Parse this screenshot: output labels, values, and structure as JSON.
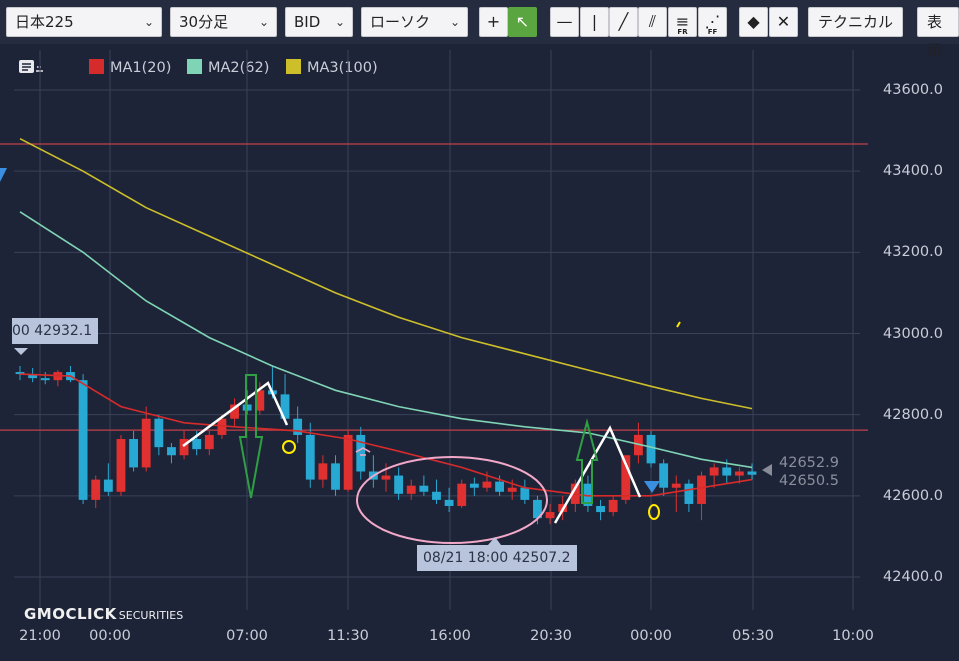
{
  "toolbar": {
    "symbol": "日本225",
    "timeframe": "30分足",
    "price_side": "BID",
    "chart_style": "ローソク",
    "tools": [
      {
        "name": "crosshair-tool",
        "glyph": "+",
        "sub": ""
      },
      {
        "name": "pointer-tool",
        "glyph": "↖",
        "sub": ""
      },
      {
        "name": "horizontal-line-tool",
        "glyph": "—",
        "sub": ""
      },
      {
        "name": "vertical-line-tool",
        "glyph": "|",
        "sub": ""
      },
      {
        "name": "trend-line-tool",
        "glyph": "╱",
        "sub": ""
      },
      {
        "name": "channel-tool",
        "glyph": "⫽",
        "sub": ""
      },
      {
        "name": "fibonacci-retracement-tool",
        "glyph": "≡",
        "sub": "FR"
      },
      {
        "name": "fibonacci-fan-tool",
        "glyph": "⋰",
        "sub": "FF"
      },
      {
        "name": "eraser-tool",
        "glyph": "◆",
        "sub": ""
      },
      {
        "name": "erase-all-tool",
        "glyph": "✕",
        "sub": ""
      }
    ],
    "technical_label": "テクニカル",
    "display_label": "表示"
  },
  "legend": [
    {
      "label": "MA1(20)",
      "color": "#d62b2b"
    },
    {
      "label": "MA2(62)",
      "color": "#7fd4b5"
    },
    {
      "label": "MA3(100)",
      "color": "#cdbf2a"
    }
  ],
  "callouts": {
    "top": "00 42932.1",
    "low": "08/21 18:00 42507.2",
    "last1": "42652.9",
    "last2": "42650.5"
  },
  "brand": {
    "name": "GMOCLICK",
    "suffix": "SECURITIES"
  },
  "chart_data": {
    "type": "candlestick",
    "ylim": [
      42360,
      43700
    ],
    "y_ticks": [
      "43600.0",
      "43400.0",
      "43200.0",
      "43000.0",
      "42800.0",
      "42600.0",
      "42400.0"
    ],
    "x_ticks": [
      "21:00",
      "00:00",
      "07:00",
      "11:30",
      "16:00",
      "20:30",
      "00:00",
      "05:30",
      "10:00"
    ],
    "horizontal_lines": [
      43467,
      42762
    ],
    "up_color": "#e0302f",
    "down_color": "#27a9d3",
    "candles": [
      [
        42905,
        42920,
        42885,
        42900
      ],
      [
        42900,
        42915,
        42880,
        42890
      ],
      [
        42890,
        42905,
        42875,
        42885
      ],
      [
        42885,
        42910,
        42870,
        42905
      ],
      [
        42905,
        42920,
        42880,
        42885
      ],
      [
        42885,
        42900,
        42580,
        42590
      ],
      [
        42590,
        42650,
        42570,
        42640
      ],
      [
        42640,
        42680,
        42600,
        42610
      ],
      [
        42610,
        42750,
        42600,
        42740
      ],
      [
        42740,
        42760,
        42660,
        42670
      ],
      [
        42670,
        42820,
        42660,
        42790
      ],
      [
        42790,
        42800,
        42700,
        42720
      ],
      [
        42720,
        42730,
        42680,
        42700
      ],
      [
        42700,
        42760,
        42690,
        42740
      ],
      [
        42740,
        42760,
        42700,
        42715
      ],
      [
        42715,
        42760,
        42700,
        42750
      ],
      [
        42750,
        42800,
        42740,
        42790
      ],
      [
        42790,
        42840,
        42770,
        42825
      ],
      [
        42825,
        42860,
        42800,
        42810
      ],
      [
        42810,
        42880,
        42800,
        42860
      ],
      [
        42860,
        42920,
        42840,
        42850
      ],
      [
        42850,
        42900,
        42780,
        42790
      ],
      [
        42790,
        42820,
        42730,
        42750
      ],
      [
        42750,
        42780,
        42620,
        42640
      ],
      [
        42640,
        42700,
        42620,
        42680
      ],
      [
        42680,
        42700,
        42600,
        42615
      ],
      [
        42615,
        42760,
        42610,
        42750
      ],
      [
        42750,
        42770,
        42640,
        42660
      ],
      [
        42660,
        42700,
        42620,
        42640
      ],
      [
        42640,
        42680,
        42610,
        42650
      ],
      [
        42650,
        42670,
        42590,
        42605
      ],
      [
        42605,
        42640,
        42590,
        42625
      ],
      [
        42625,
        42650,
        42600,
        42610
      ],
      [
        42610,
        42640,
        42580,
        42590
      ],
      [
        42590,
        42620,
        42560,
        42575
      ],
      [
        42575,
        42640,
        42570,
        42630
      ],
      [
        42630,
        42645,
        42600,
        42620
      ],
      [
        42620,
        42660,
        42610,
        42635
      ],
      [
        42635,
        42650,
        42600,
        42610
      ],
      [
        42610,
        42640,
        42590,
        42620
      ],
      [
        42620,
        42640,
        42580,
        42590
      ],
      [
        42590,
        42600,
        42530,
        42545
      ],
      [
        42545,
        42580,
        42530,
        42560
      ],
      [
        42560,
        42600,
        42540,
        42580
      ],
      [
        42580,
        42640,
        42560,
        42630
      ],
      [
        42630,
        42650,
        42560,
        42575
      ],
      [
        42575,
        42590,
        42540,
        42560
      ],
      [
        42560,
        42600,
        42550,
        42590
      ],
      [
        42590,
        42700,
        42580,
        42700
      ],
      [
        42700,
        42780,
        42680,
        42750
      ],
      [
        42750,
        42760,
        42670,
        42680
      ],
      [
        42680,
        42690,
        42600,
        42620
      ],
      [
        42620,
        42650,
        42560,
        42630
      ],
      [
        42630,
        42640,
        42560,
        42580
      ],
      [
        42580,
        42660,
        42540,
        42650
      ],
      [
        42650,
        42680,
        42620,
        42670
      ],
      [
        42670,
        42690,
        42630,
        42650
      ],
      [
        42650,
        42670,
        42630,
        42660
      ],
      [
        42660,
        42680,
        42640,
        42652
      ]
    ],
    "series": [
      {
        "name": "MA1(20)",
        "color": "#d62b2b",
        "values": [
          [
            0,
            42900
          ],
          [
            4,
            42895
          ],
          [
            8,
            42820
          ],
          [
            13,
            42780
          ],
          [
            17,
            42770
          ],
          [
            22,
            42760
          ],
          [
            26,
            42740
          ],
          [
            30,
            42710
          ],
          [
            35,
            42670
          ],
          [
            40,
            42620
          ],
          [
            45,
            42600
          ],
          [
            50,
            42600
          ],
          [
            54,
            42620
          ],
          [
            58,
            42640
          ]
        ]
      },
      {
        "name": "MA2(62)",
        "color": "#7fd4b5",
        "values": [
          [
            0,
            43300
          ],
          [
            5,
            43200
          ],
          [
            10,
            43080
          ],
          [
            15,
            42990
          ],
          [
            20,
            42920
          ],
          [
            25,
            42860
          ],
          [
            30,
            42820
          ],
          [
            35,
            42790
          ],
          [
            40,
            42770
          ],
          [
            45,
            42755
          ],
          [
            50,
            42720
          ],
          [
            54,
            42690
          ],
          [
            58,
            42670
          ]
        ]
      },
      {
        "name": "MA3(100)",
        "color": "#cdbf2a",
        "values": [
          [
            0,
            43480
          ],
          [
            5,
            43400
          ],
          [
            10,
            43310
          ],
          [
            15,
            43240
          ],
          [
            20,
            43170
          ],
          [
            25,
            43100
          ],
          [
            30,
            43040
          ],
          [
            35,
            42990
          ],
          [
            40,
            42950
          ],
          [
            45,
            42910
          ],
          [
            50,
            42870
          ],
          [
            54,
            42840
          ],
          [
            58,
            42815
          ]
        ]
      }
    ]
  }
}
